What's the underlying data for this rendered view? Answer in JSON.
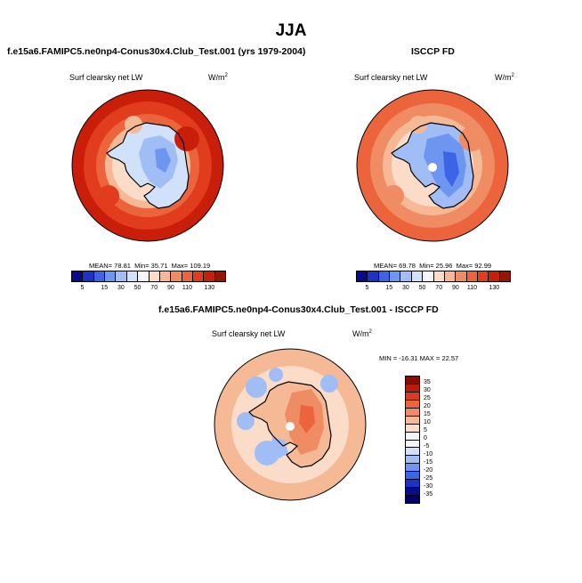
{
  "title": "JJA",
  "panels": [
    {
      "title": "f.e15a6.FAMIPC5.ne0np4-Conus30x4.Club_Test.001 (yrs 1979-2004)",
      "variable": "Surf clearsky net LW",
      "units": "W/m",
      "units_sup": "2",
      "stats": {
        "mean_label": "MEAN=",
        "mean": "78.81",
        "min_label": "Min=",
        "min": "35.71",
        "max_label": "Max=",
        "max": "109.19"
      },
      "colorbar_labels": [
        "5",
        "15",
        "30",
        "50",
        "70",
        "90",
        "110",
        "130"
      ],
      "pattern": "model"
    },
    {
      "title": "ISCCP FD",
      "variable": "Surf clearsky net LW",
      "units": "W/m",
      "units_sup": "2",
      "stats": {
        "mean_label": "MEAN=",
        "mean": "69.78",
        "min_label": "Min=",
        "min": "25.96",
        "max_label": "Max=",
        "max": "92.99"
      },
      "colorbar_labels": [
        "5",
        "15",
        "30",
        "50",
        "70",
        "90",
        "110",
        "130"
      ],
      "pattern": "obs"
    }
  ],
  "diff": {
    "title": "f.e15a6.FAMIPC5.ne0np4-Conus30x4.Club_Test.001 - ISCCP FD",
    "variable": "Surf clearsky net LW",
    "units": "W/m",
    "units_sup": "2",
    "stats_text": "MIN = -16.31  MAX =  22.57",
    "colorbar_labels": [
      "35",
      "30",
      "25",
      "20",
      "15",
      "10",
      "5",
      "0",
      "-5",
      "-10",
      "-15",
      "-20",
      "-25",
      "-30",
      "-35"
    ]
  },
  "colors": {
    "abs_scale": [
      "#0a0a8c",
      "#1e32c8",
      "#3c64e6",
      "#6e96f0",
      "#a0bef5",
      "#d2e1fa",
      "#f5f5fa",
      "#fadcc8",
      "#f5b996",
      "#f08c64",
      "#eb643c",
      "#e13c1e",
      "#c81e0a",
      "#961400",
      "#6e0a00"
    ],
    "abs_bar": [
      "#0a0a8c",
      "#1e32c8",
      "#3c64e6",
      "#6e96f0",
      "#a0bef5",
      "#d2e1fa",
      "#f5f5fa",
      "#fadcc8",
      "#f5b996",
      "#f08c64",
      "#eb643c",
      "#e13c1e",
      "#c81e0a",
      "#961400"
    ],
    "diff_bar": [
      "#8c0a00",
      "#b41e0a",
      "#d73c1e",
      "#eb643c",
      "#f08c64",
      "#f5b996",
      "#fadcc8",
      "#f5f5fa",
      "#f5f5fa",
      "#d2e1fa",
      "#a0bef5",
      "#6e96f0",
      "#3c64e6",
      "#1e32c8",
      "#0a0a8c",
      "#000064"
    ]
  }
}
